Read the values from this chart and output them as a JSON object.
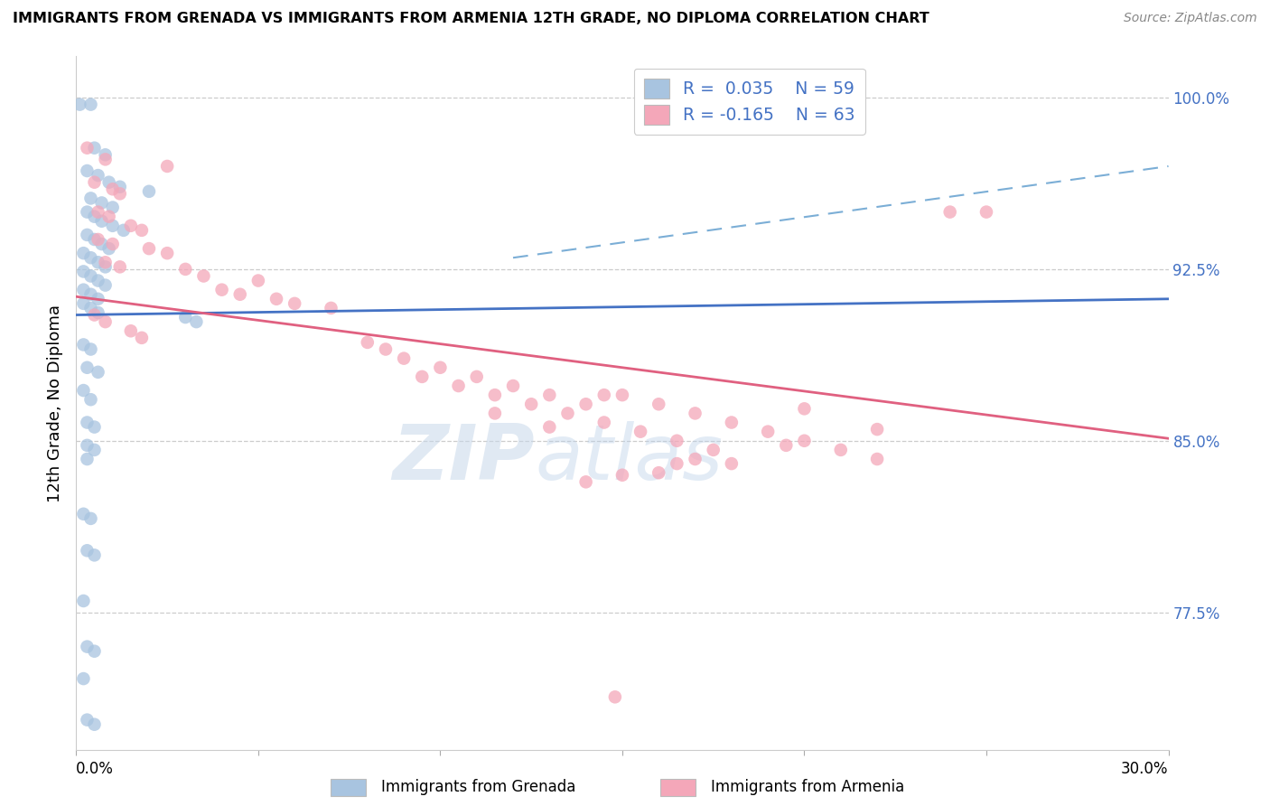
{
  "title": "IMMIGRANTS FROM GRENADA VS IMMIGRANTS FROM ARMENIA 12TH GRADE, NO DIPLOMA CORRELATION CHART",
  "source": "Source: ZipAtlas.com",
  "ylabel": "12th Grade, No Diploma",
  "xlim": [
    0.0,
    0.3
  ],
  "ylim": [
    0.715,
    1.018
  ],
  "blue_color": "#a8c4e0",
  "pink_color": "#f4a7b9",
  "blue_line_color": "#4472c4",
  "pink_line_color": "#e06080",
  "dashed_line_color": "#7baed6",
  "legend_r_blue": "0.035",
  "legend_n_blue": "59",
  "legend_r_pink": "-0.165",
  "legend_n_pink": "63",
  "ytick_vals": [
    0.775,
    0.85,
    0.925,
    1.0
  ],
  "ytick_labels": [
    "77.5%",
    "85.0%",
    "92.5%",
    "100.0%"
  ],
  "blue_scatter": [
    [
      0.001,
      0.997
    ],
    [
      0.004,
      0.997
    ],
    [
      0.005,
      0.978
    ],
    [
      0.008,
      0.975
    ],
    [
      0.003,
      0.968
    ],
    [
      0.006,
      0.966
    ],
    [
      0.009,
      0.963
    ],
    [
      0.012,
      0.961
    ],
    [
      0.02,
      0.959
    ],
    [
      0.004,
      0.956
    ],
    [
      0.007,
      0.954
    ],
    [
      0.01,
      0.952
    ],
    [
      0.003,
      0.95
    ],
    [
      0.005,
      0.948
    ],
    [
      0.007,
      0.946
    ],
    [
      0.01,
      0.944
    ],
    [
      0.013,
      0.942
    ],
    [
      0.003,
      0.94
    ],
    [
      0.005,
      0.938
    ],
    [
      0.007,
      0.936
    ],
    [
      0.009,
      0.934
    ],
    [
      0.002,
      0.932
    ],
    [
      0.004,
      0.93
    ],
    [
      0.006,
      0.928
    ],
    [
      0.008,
      0.926
    ],
    [
      0.002,
      0.924
    ],
    [
      0.004,
      0.922
    ],
    [
      0.006,
      0.92
    ],
    [
      0.008,
      0.918
    ],
    [
      0.002,
      0.916
    ],
    [
      0.004,
      0.914
    ],
    [
      0.006,
      0.912
    ],
    [
      0.002,
      0.91
    ],
    [
      0.004,
      0.908
    ],
    [
      0.006,
      0.906
    ],
    [
      0.03,
      0.904
    ],
    [
      0.033,
      0.902
    ],
    [
      0.002,
      0.892
    ],
    [
      0.004,
      0.89
    ],
    [
      0.003,
      0.882
    ],
    [
      0.006,
      0.88
    ],
    [
      0.002,
      0.872
    ],
    [
      0.004,
      0.868
    ],
    [
      0.003,
      0.858
    ],
    [
      0.005,
      0.856
    ],
    [
      0.003,
      0.848
    ],
    [
      0.005,
      0.846
    ],
    [
      0.003,
      0.842
    ],
    [
      0.002,
      0.818
    ],
    [
      0.004,
      0.816
    ],
    [
      0.003,
      0.802
    ],
    [
      0.005,
      0.8
    ],
    [
      0.002,
      0.78
    ],
    [
      0.003,
      0.76
    ],
    [
      0.005,
      0.758
    ],
    [
      0.002,
      0.746
    ],
    [
      0.003,
      0.728
    ],
    [
      0.005,
      0.726
    ]
  ],
  "pink_scatter": [
    [
      0.003,
      0.978
    ],
    [
      0.008,
      0.973
    ],
    [
      0.005,
      0.963
    ],
    [
      0.01,
      0.96
    ],
    [
      0.012,
      0.958
    ],
    [
      0.025,
      0.97
    ],
    [
      0.006,
      0.95
    ],
    [
      0.009,
      0.948
    ],
    [
      0.015,
      0.944
    ],
    [
      0.018,
      0.942
    ],
    [
      0.006,
      0.938
    ],
    [
      0.01,
      0.936
    ],
    [
      0.02,
      0.934
    ],
    [
      0.025,
      0.932
    ],
    [
      0.008,
      0.928
    ],
    [
      0.012,
      0.926
    ],
    [
      0.03,
      0.925
    ],
    [
      0.035,
      0.922
    ],
    [
      0.05,
      0.92
    ],
    [
      0.04,
      0.916
    ],
    [
      0.045,
      0.914
    ],
    [
      0.055,
      0.912
    ],
    [
      0.06,
      0.91
    ],
    [
      0.07,
      0.908
    ],
    [
      0.005,
      0.905
    ],
    [
      0.008,
      0.902
    ],
    [
      0.015,
      0.898
    ],
    [
      0.018,
      0.895
    ],
    [
      0.08,
      0.893
    ],
    [
      0.085,
      0.89
    ],
    [
      0.09,
      0.886
    ],
    [
      0.1,
      0.882
    ],
    [
      0.11,
      0.878
    ],
    [
      0.12,
      0.874
    ],
    [
      0.13,
      0.87
    ],
    [
      0.14,
      0.866
    ],
    [
      0.15,
      0.87
    ],
    [
      0.16,
      0.866
    ],
    [
      0.17,
      0.862
    ],
    [
      0.18,
      0.858
    ],
    [
      0.19,
      0.854
    ],
    [
      0.2,
      0.85
    ],
    [
      0.21,
      0.846
    ],
    [
      0.22,
      0.842
    ],
    [
      0.095,
      0.878
    ],
    [
      0.105,
      0.874
    ],
    [
      0.115,
      0.87
    ],
    [
      0.125,
      0.866
    ],
    [
      0.135,
      0.862
    ],
    [
      0.145,
      0.858
    ],
    [
      0.155,
      0.854
    ],
    [
      0.165,
      0.85
    ],
    [
      0.175,
      0.846
    ],
    [
      0.25,
      0.95
    ],
    [
      0.2,
      0.864
    ],
    [
      0.18,
      0.84
    ],
    [
      0.16,
      0.836
    ],
    [
      0.14,
      0.832
    ],
    [
      0.24,
      0.95
    ],
    [
      0.15,
      0.835
    ],
    [
      0.17,
      0.842
    ],
    [
      0.22,
      0.855
    ],
    [
      0.13,
      0.856
    ],
    [
      0.115,
      0.862
    ],
    [
      0.145,
      0.87
    ],
    [
      0.195,
      0.848
    ],
    [
      0.165,
      0.84
    ],
    [
      0.148,
      0.738
    ]
  ],
  "blue_line_x": [
    0.0,
    0.3
  ],
  "blue_line_y": [
    0.905,
    0.912
  ],
  "dashed_line_x": [
    0.12,
    0.3
  ],
  "dashed_line_y": [
    0.93,
    0.97
  ],
  "pink_line_x": [
    0.0,
    0.3
  ],
  "pink_line_y": [
    0.913,
    0.851
  ]
}
